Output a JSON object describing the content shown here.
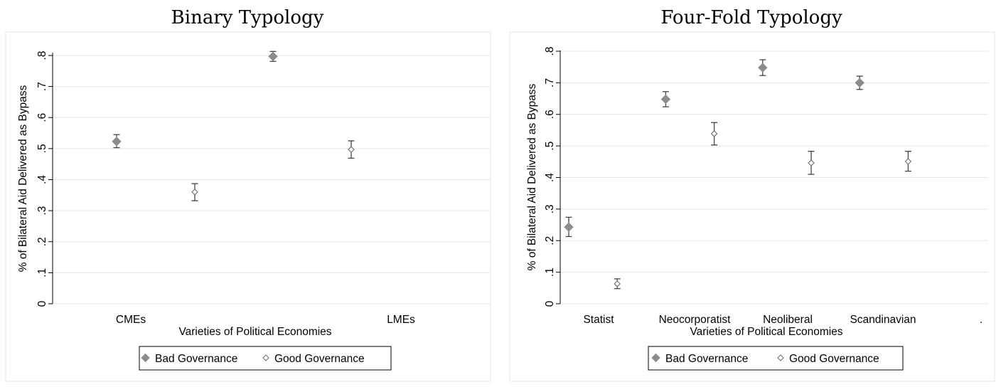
{
  "chart_data": [
    {
      "type": "scatter",
      "title": "Binary Typology",
      "xlabel": "Varieties of Political Economies",
      "ylabel": "% of Bilateral Aid Delivered as Bypass",
      "ylim": [
        0,
        0.8
      ],
      "yticks": [
        0,
        0.1,
        0.2,
        0.3,
        0.4,
        0.5,
        0.6,
        0.7,
        0.8
      ],
      "ytick_labels": [
        "0",
        ".1",
        ".2",
        ".3",
        ".4",
        ".5",
        ".6",
        ".7",
        ".8"
      ],
      "grid": true,
      "legend_position": "bottom",
      "categories": [
        "CMEs",
        "LMEs"
      ],
      "series": [
        {
          "name": "Bad Governance",
          "marker": "filled-diamond",
          "color": "#8c8c8c",
          "points": [
            {
              "x": 1.0,
              "y": 0.523,
              "lo": 0.503,
              "hi": 0.545
            },
            {
              "x": 3.0,
              "y": 0.797,
              "lo": 0.781,
              "hi": 0.813
            }
          ]
        },
        {
          "name": "Good Governance",
          "marker": "hollow-diamond",
          "color": "#6e6e6e",
          "points": [
            {
              "x": 2.0,
              "y": 0.36,
              "lo": 0.332,
              "hi": 0.387
            },
            {
              "x": 4.0,
              "y": 0.497,
              "lo": 0.469,
              "hi": 0.525
            }
          ]
        }
      ]
    },
    {
      "type": "scatter",
      "title": "Four-Fold Typology",
      "xlabel": "Varieties of Political Economies",
      "ylabel": "% of Bilateral Aid Delivered as Bypass",
      "ylim": [
        0,
        0.8
      ],
      "yticks": [
        0,
        0.1,
        0.2,
        0.3,
        0.4,
        0.5,
        0.6,
        0.7,
        0.8
      ],
      "ytick_labels": [
        "0",
        ".1",
        ".2",
        ".3",
        ".4",
        ".5",
        ".6",
        ".7",
        ".8"
      ],
      "grid": true,
      "legend_position": "bottom",
      "categories": [
        "Statist",
        "Neocorporatist",
        "Neoliberal",
        "Scandinavian",
        "."
      ],
      "series": [
        {
          "name": "Bad Governance",
          "marker": "filled-diamond",
          "color": "#8c8c8c",
          "points": [
            {
              "x": 1.0,
              "y": 0.243,
              "lo": 0.213,
              "hi": 0.274
            },
            {
              "x": 3.0,
              "y": 0.648,
              "lo": 0.624,
              "hi": 0.672
            },
            {
              "x": 5.0,
              "y": 0.748,
              "lo": 0.723,
              "hi": 0.773
            },
            {
              "x": 7.0,
              "y": 0.7,
              "lo": 0.679,
              "hi": 0.721
            }
          ]
        },
        {
          "name": "Good Governance",
          "marker": "hollow-diamond",
          "color": "#6e6e6e",
          "points": [
            {
              "x": 2.0,
              "y": 0.063,
              "lo": 0.048,
              "hi": 0.079
            },
            {
              "x": 4.0,
              "y": 0.539,
              "lo": 0.503,
              "hi": 0.574
            },
            {
              "x": 6.0,
              "y": 0.446,
              "lo": 0.41,
              "hi": 0.483
            },
            {
              "x": 8.0,
              "y": 0.451,
              "lo": 0.42,
              "hi": 0.483
            }
          ]
        }
      ]
    }
  ]
}
